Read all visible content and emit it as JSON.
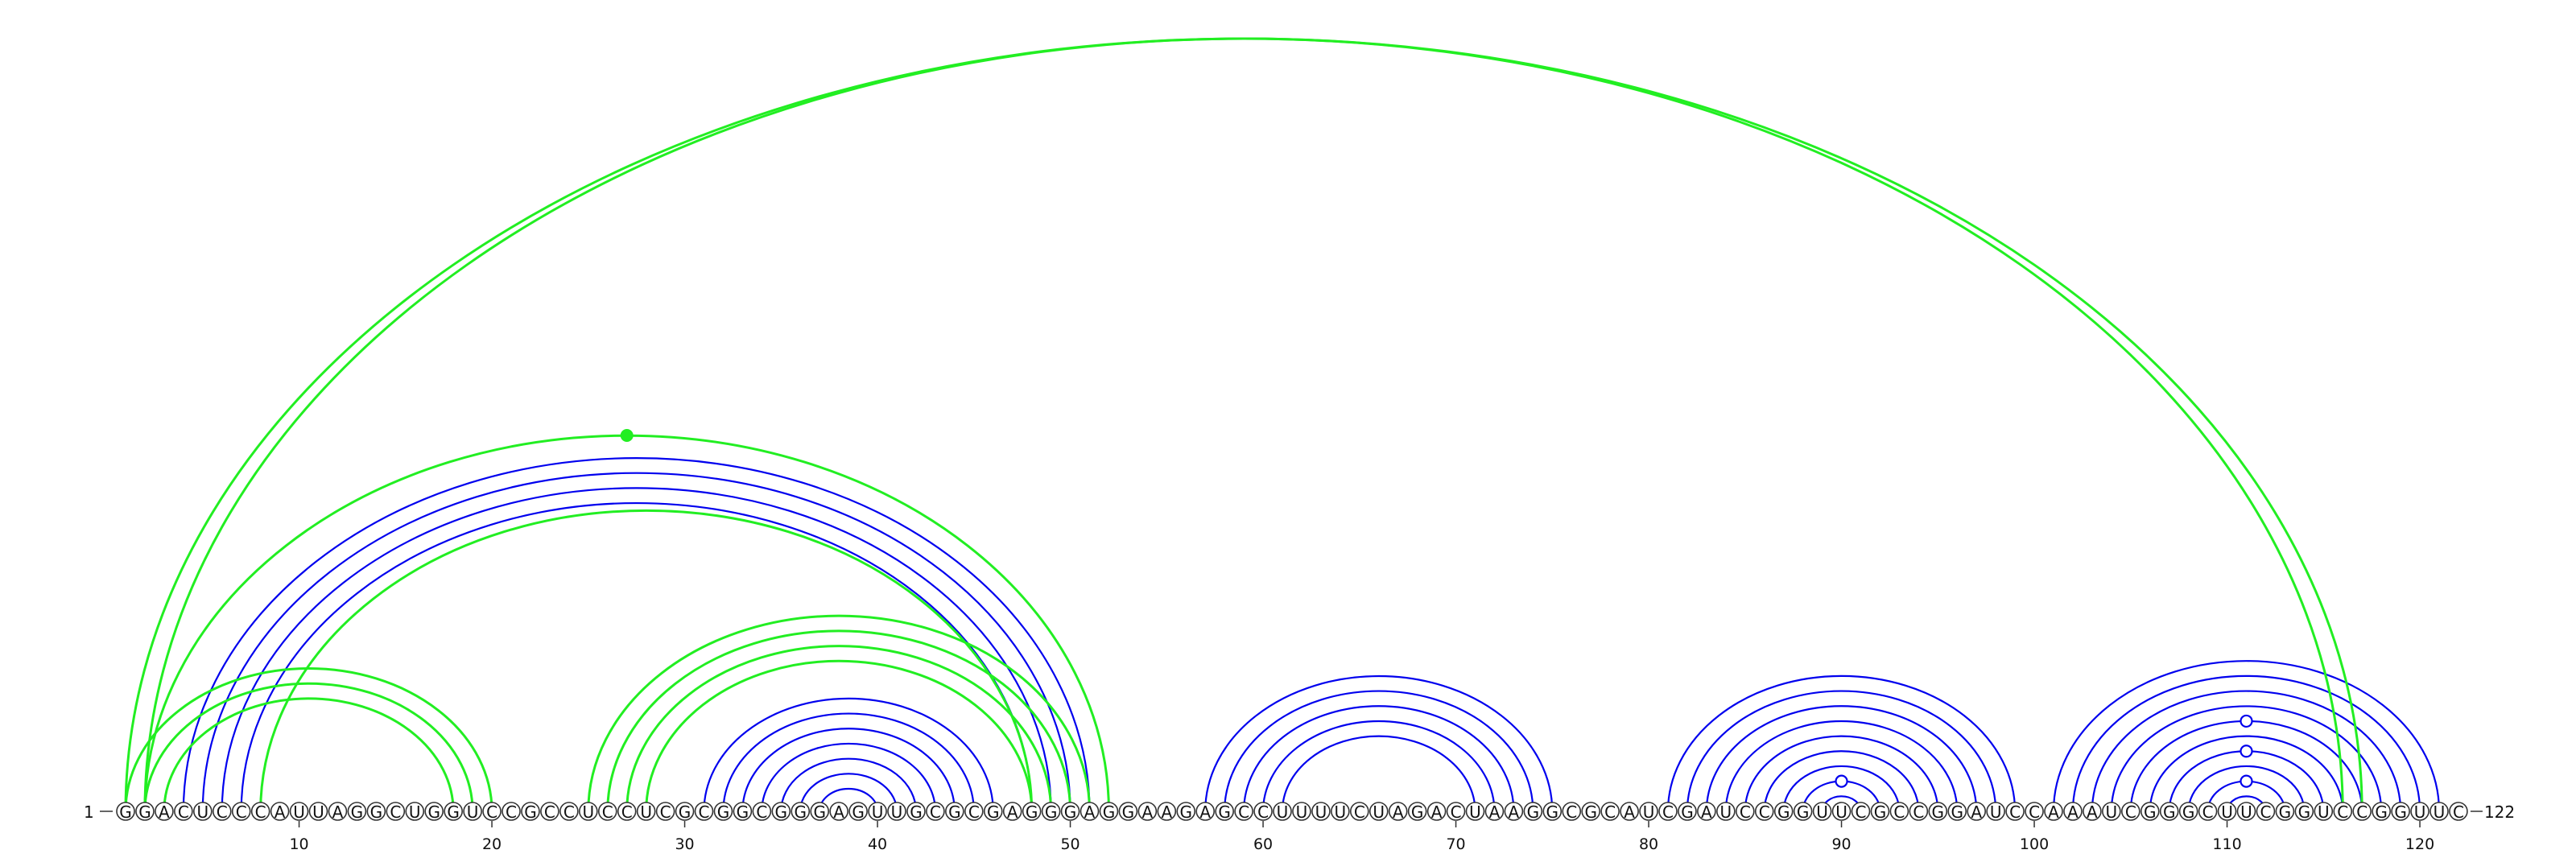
{
  "sequence": "GGACUCCCAUUAGGCUGGUCCGCCUCCUCGCGGCGGGAGUUGCGCGAGGGAGGAAGAGCCUUUUCUAGACUAAGGCGCAUCGAUCCGGUUCGCCGGAUCCAAAUCGGGCUUCGGUCCGGUUC",
  "start_label": "1",
  "end_label": "122",
  "ticks": [
    10,
    20,
    30,
    40,
    50,
    60,
    70,
    80,
    90,
    100,
    110,
    120
  ],
  "colors": {
    "consensus": "#0000ee",
    "alternative": "#22ee22"
  },
  "consensus_arcs": [
    [
      4,
      51
    ],
    [
      5,
      50
    ],
    [
      6,
      49
    ],
    [
      7,
      48
    ],
    [
      31,
      46
    ],
    [
      32,
      45
    ],
    [
      33,
      44
    ],
    [
      34,
      43
    ],
    [
      35,
      42
    ],
    [
      36,
      41
    ],
    [
      37,
      40
    ],
    [
      57,
      75
    ],
    [
      58,
      74
    ],
    [
      59,
      73
    ],
    [
      60,
      72
    ],
    [
      61,
      71
    ],
    [
      81,
      99
    ],
    [
      82,
      98
    ],
    [
      83,
      97
    ],
    [
      84,
      96
    ],
    [
      85,
      95
    ],
    [
      86,
      94
    ],
    [
      87,
      93
    ],
    [
      88,
      92
    ],
    [
      89,
      91
    ],
    [
      101,
      121
    ],
    [
      102,
      120
    ],
    [
      103,
      119
    ],
    [
      104,
      118
    ],
    [
      105,
      117
    ],
    [
      106,
      116
    ],
    [
      107,
      115
    ],
    [
      108,
      114
    ],
    [
      109,
      113
    ],
    [
      110,
      112
    ]
  ],
  "alternative_arcs": [
    [
      1,
      117
    ],
    [
      2,
      116
    ],
    [
      2,
      52
    ],
    [
      8,
      48
    ],
    [
      1,
      20
    ],
    [
      2,
      19
    ],
    [
      3,
      18
    ],
    [
      25,
      51
    ],
    [
      26,
      50
    ],
    [
      27,
      49
    ],
    [
      28,
      48
    ]
  ],
  "open_markers": [
    {
      "arc": [
        88,
        92
      ]
    },
    {
      "arc": [
        105,
        117
      ]
    },
    {
      "arc": [
        107,
        115
      ]
    },
    {
      "arc": [
        109,
        113
      ]
    }
  ],
  "filled_markers": [
    {
      "arc": [
        2,
        52
      ]
    }
  ]
}
